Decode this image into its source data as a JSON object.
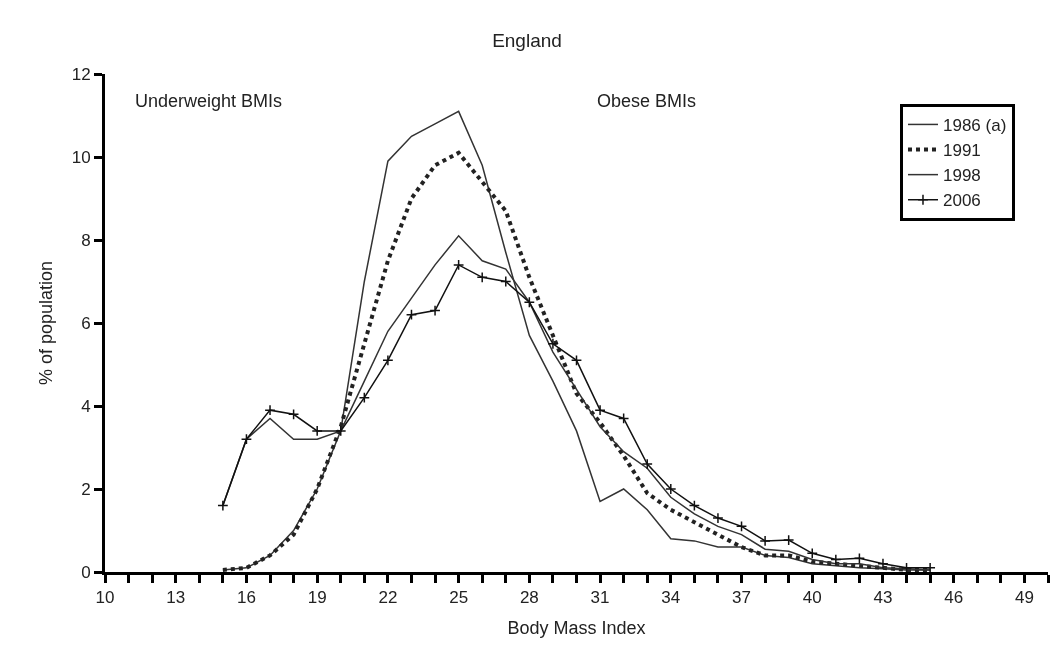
{
  "chart_data": {
    "type": "line",
    "title": "England",
    "xlabel": "Body Mass Index",
    "ylabel": "% of population",
    "annotations": [
      "Underweight BMIs",
      "Obese BMIs"
    ],
    "x": [
      15,
      16,
      17,
      18,
      19,
      20,
      21,
      22,
      23,
      24,
      25,
      26,
      27,
      28,
      29,
      30,
      31,
      32,
      33,
      34,
      35,
      36,
      37,
      38,
      39,
      40,
      41,
      42,
      43,
      44,
      45
    ],
    "series": [
      {
        "name": "1986 (a)",
        "color": "#333333",
        "line_style": "solid",
        "marker": "none",
        "values": [
          0.05,
          0.1,
          0.4,
          1.0,
          2.0,
          3.4,
          7.0,
          9.9,
          10.5,
          10.8,
          11.1,
          9.8,
          7.7,
          5.7,
          4.6,
          3.4,
          1.7,
          2.0,
          1.5,
          0.8,
          0.75,
          0.6,
          0.6,
          0.4,
          0.35,
          0.2,
          0.15,
          0.1,
          0.08,
          0.05,
          0.05
        ]
      },
      {
        "name": "1991",
        "color": "#222222",
        "line_style": "dotted",
        "marker": "none",
        "values": [
          0.05,
          0.1,
          0.4,
          0.9,
          2.0,
          3.5,
          5.5,
          7.5,
          9.0,
          9.8,
          10.1,
          9.4,
          8.7,
          7.1,
          5.7,
          4.3,
          3.6,
          2.8,
          1.9,
          1.5,
          1.2,
          0.9,
          0.6,
          0.4,
          0.4,
          0.25,
          0.2,
          0.15,
          0.1,
          0.05,
          0.05
        ]
      },
      {
        "name": "1998",
        "color": "#333333",
        "line_style": "solid",
        "marker": "none",
        "values": [
          1.6,
          3.2,
          3.7,
          3.2,
          3.2,
          3.4,
          4.6,
          5.8,
          6.6,
          7.4,
          8.1,
          7.5,
          7.3,
          6.5,
          5.3,
          4.4,
          3.5,
          2.9,
          2.5,
          1.8,
          1.4,
          1.1,
          0.9,
          0.55,
          0.5,
          0.3,
          0.2,
          0.2,
          0.1,
          0.08,
          0.05
        ]
      },
      {
        "name": "2006",
        "color": "#111111",
        "line_style": "solid",
        "marker": "cross",
        "values": [
          1.6,
          3.2,
          3.9,
          3.8,
          3.4,
          3.4,
          4.2,
          5.1,
          6.2,
          6.3,
          7.4,
          7.1,
          7.0,
          6.5,
          5.5,
          5.1,
          3.9,
          3.7,
          2.6,
          2.0,
          1.6,
          1.3,
          1.1,
          0.75,
          0.77,
          0.45,
          0.3,
          0.33,
          0.2,
          0.1,
          0.1
        ]
      }
    ],
    "xlim": [
      10,
      50
    ],
    "xticks": [
      10,
      {
        "value": 11,
        "label": null
      },
      {
        "value": 12,
        "label": null
      },
      13,
      {
        "value": 14,
        "label": null
      },
      {
        "value": 15,
        "label": null
      },
      16,
      {
        "value": 17,
        "label": null
      },
      {
        "value": 18,
        "label": null
      },
      19,
      {
        "value": 20,
        "label": null
      },
      {
        "value": 21,
        "label": null
      },
      22,
      {
        "value": 23,
        "label": null
      },
      {
        "value": 24,
        "label": null
      },
      25,
      {
        "value": 26,
        "label": null
      },
      {
        "value": 27,
        "label": null
      },
      28,
      {
        "value": 29,
        "label": null
      },
      {
        "value": 30,
        "label": null
      },
      31,
      {
        "value": 32,
        "label": null
      },
      {
        "value": 33,
        "label": null
      },
      34,
      {
        "value": 35,
        "label": null
      },
      {
        "value": 36,
        "label": null
      },
      37,
      {
        "value": 38,
        "label": null
      },
      {
        "value": 39,
        "label": null
      },
      40,
      {
        "value": 41,
        "label": null
      },
      {
        "value": 42,
        "label": null
      },
      43,
      {
        "value": 44,
        "label": null
      },
      {
        "value": 45,
        "label": null
      },
      46,
      {
        "value": 47,
        "label": null
      },
      {
        "value": 48,
        "label": null
      },
      49,
      {
        "value": 50,
        "label": null
      }
    ],
    "ylim": [
      0,
      12
    ],
    "yticks": [
      0,
      2,
      4,
      6,
      8,
      10,
      12
    ],
    "legend": "top right"
  }
}
